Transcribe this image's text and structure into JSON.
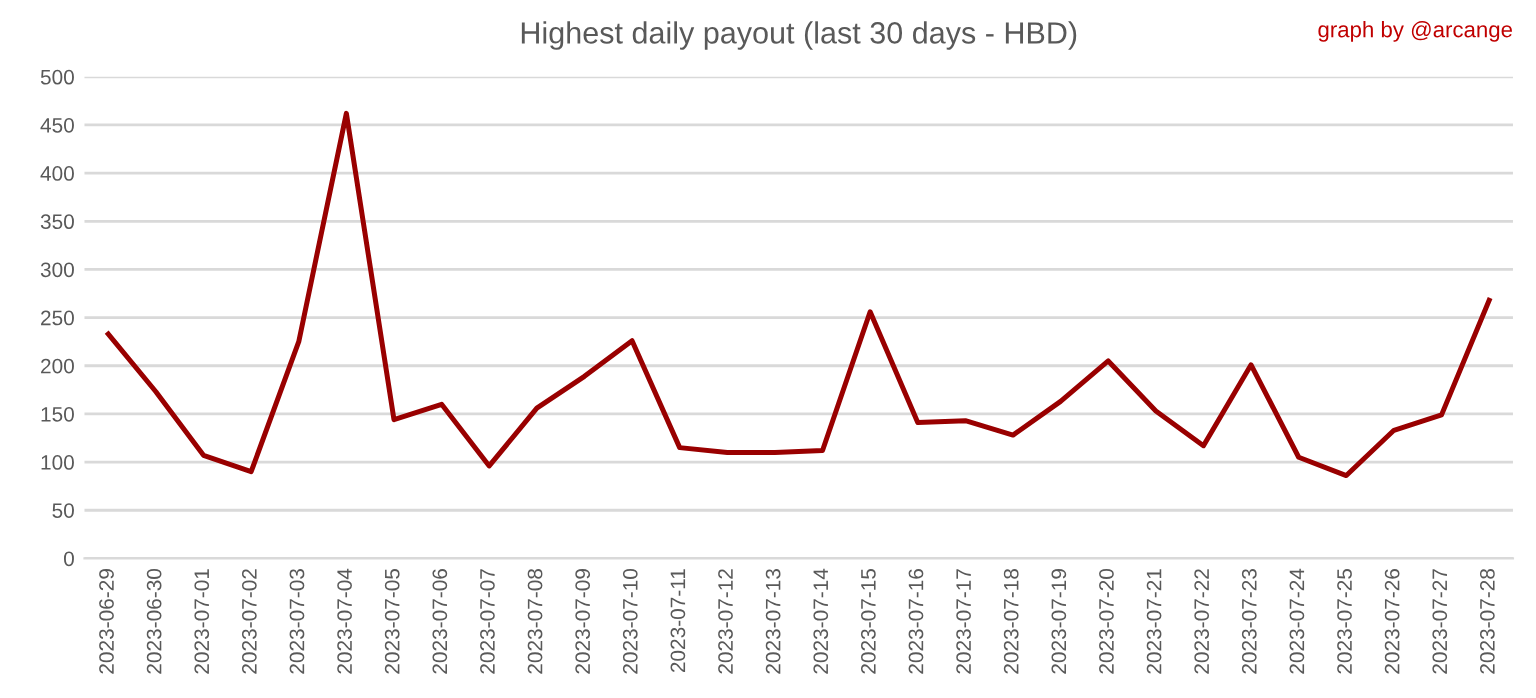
{
  "chart_data": {
    "type": "line",
    "title": "Highest daily payout (last 30 days - HBD)",
    "annotations": [
      "graph by @arcange"
    ],
    "categories": [
      "2023-06-29",
      "2023-06-30",
      "2023-07-01",
      "2023-07-02",
      "2023-07-03",
      "2023-07-04",
      "2023-07-05",
      "2023-07-06",
      "2023-07-07",
      "2023-07-08",
      "2023-07-09",
      "2023-07-10",
      "2023-07-11",
      "2023-07-12",
      "2023-07-13",
      "2023-07-14",
      "2023-07-15",
      "2023-07-16",
      "2023-07-17",
      "2023-07-18",
      "2023-07-19",
      "2023-07-20",
      "2023-07-21",
      "2023-07-22",
      "2023-07-23",
      "2023-07-24",
      "2023-07-25",
      "2023-07-26",
      "2023-07-27",
      "2023-07-28"
    ],
    "series": [
      {
        "color": "#990000",
        "values": [
          233,
          173,
          107,
          90,
          225,
          462,
          144,
          160,
          96,
          156,
          189,
          226,
          115,
          110,
          110,
          112,
          256,
          141,
          143,
          128,
          163,
          205,
          153,
          117,
          201,
          105,
          86,
          133,
          149,
          268
        ]
      }
    ],
    "ylim": [
      0,
      500
    ],
    "yticks": [
      0,
      50,
      100,
      150,
      200,
      250,
      300,
      350,
      400,
      450,
      500
    ],
    "grid": "y",
    "marker": "none",
    "line_style": "solid"
  }
}
